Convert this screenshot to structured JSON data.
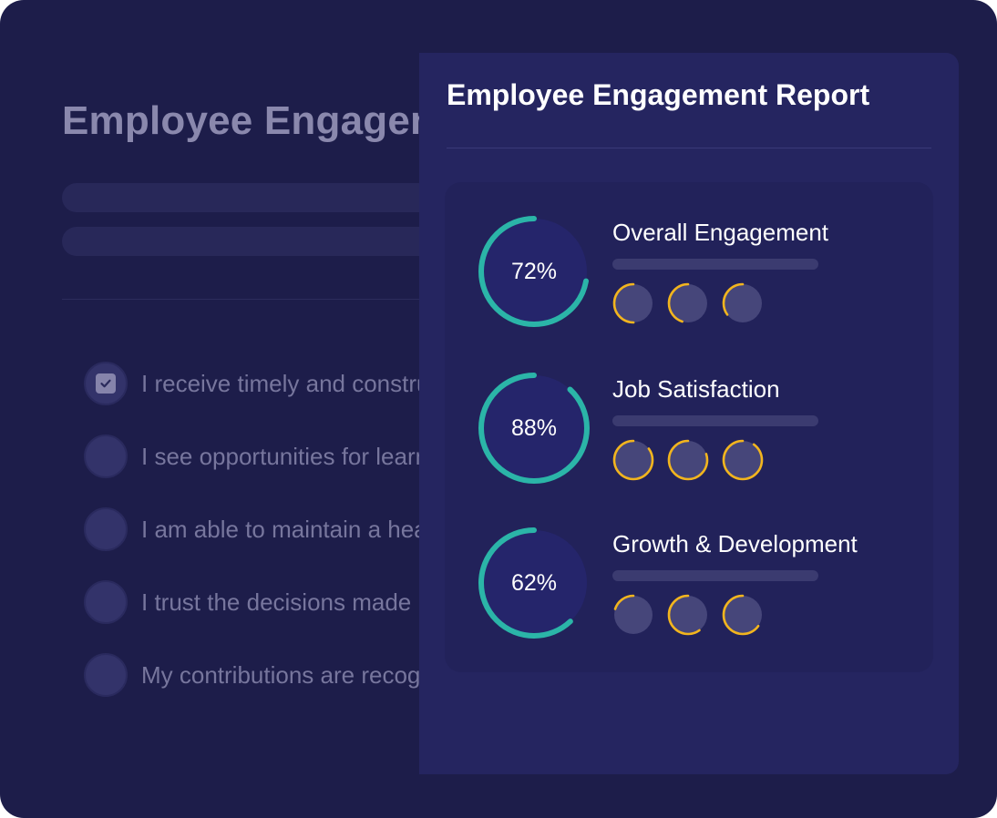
{
  "survey": {
    "title": "Employee Engagement Survey",
    "questions": [
      {
        "text": "I receive timely and constructive feedback",
        "checked": true
      },
      {
        "text": "I see opportunities for learning and growth",
        "checked": false
      },
      {
        "text": "I am able to maintain a healthy work-life balance",
        "checked": false
      },
      {
        "text": "I trust the decisions made by leadership",
        "checked": false
      },
      {
        "text": "My contributions are recognized and valued",
        "checked": false
      }
    ]
  },
  "report": {
    "title": "Employee Engagement Report",
    "metrics": [
      {
        "label": "Overall Engagement",
        "value": 72,
        "value_label": "72%",
        "sub_levels": [
          0.5,
          0.45,
          0.35
        ]
      },
      {
        "label": "Job Satisfaction",
        "value": 88,
        "value_label": "88%",
        "sub_levels": [
          0.85,
          0.8,
          0.9
        ]
      },
      {
        "label": "Growth & Development",
        "value": 62,
        "value_label": "62%",
        "sub_levels": [
          0.2,
          0.6,
          0.65
        ]
      }
    ]
  },
  "colors": {
    "background": "#1d1d4a",
    "panel": "#252560",
    "ring_accent": "#2bb5a8",
    "mini_accent": "#f2b51e",
    "muted_text": "#77769d"
  }
}
